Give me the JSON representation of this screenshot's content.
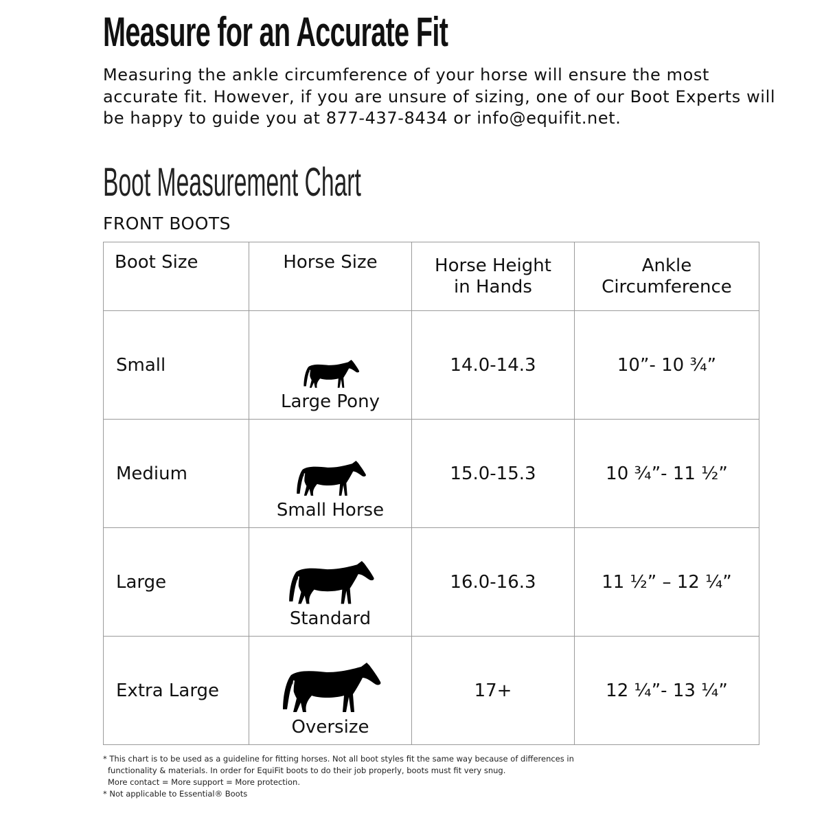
{
  "title": "Measure for an Accurate Fit",
  "intro": "Measuring the ankle circumference of your horse will ensure the most accurate fit.  However, if you are unsure of sizing, one of our Boot Experts will be happy to guide you at 877-437-8434 or info@equifit.net.",
  "chart_title": "Boot Measurement Chart",
  "section": "FRONT BOOTS",
  "headers": [
    "Boot Size",
    "Horse Size",
    "Horse Height in Hands",
    "Ankle Circumference"
  ],
  "rows": [
    {
      "boot_size": "Small",
      "horse_size": "Large Pony",
      "icon": "horse-silhouette-icon",
      "height": "14.0-14.3",
      "ankle": "10”- 10 ¾”"
    },
    {
      "boot_size": "Medium",
      "horse_size": "Small Horse",
      "icon": "horse-silhouette-icon",
      "height": "15.0-15.3",
      "ankle": "10 ¾”- 11 ½”"
    },
    {
      "boot_size": "Large",
      "horse_size": "Standard",
      "icon": "horse-silhouette-icon",
      "height": "16.0-16.3",
      "ankle": "11 ½” – 12 ¼”"
    },
    {
      "boot_size": "Extra Large",
      "horse_size": "Oversize",
      "icon": "horse-silhouette-icon",
      "height": "17+",
      "ankle": "12 ¼”- 13 ¼”"
    }
  ],
  "footnotes": [
    "* This chart is to be used as a guideline for fitting horses. Not all boot styles fit the same way because of differences in",
    "functionality & materials. In order for EquiFit boots to do their job properly, boots must fit very snug.",
    "More contact = More support = More protection.",
    "* Not applicable to Essential® Boots"
  ]
}
